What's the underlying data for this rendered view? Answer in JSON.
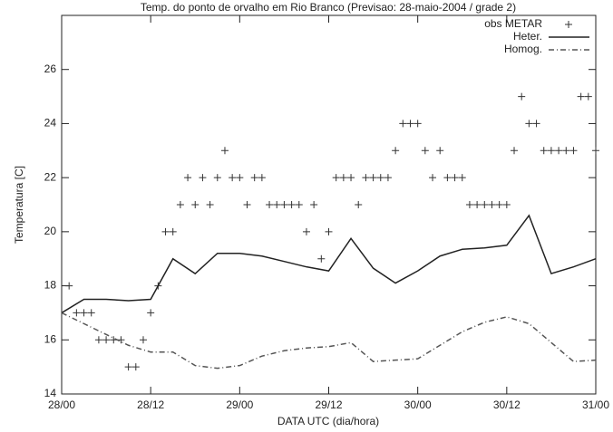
{
  "chart_data": {
    "type": "line",
    "title": "Temp. do ponto de orvalho em Rio Branco (Previsao: 28-maio-2004 / grade 2)",
    "xlabel": "DATA UTC (dia/hora)",
    "ylabel": "Temperatura [C]",
    "xlim": [
      0,
      72
    ],
    "ylim": [
      14,
      28
    ],
    "xticks": [
      {
        "value": 0,
        "label": "28/00"
      },
      {
        "value": 12,
        "label": "28/12"
      },
      {
        "value": 24,
        "label": "29/00"
      },
      {
        "value": 36,
        "label": "29/12"
      },
      {
        "value": 48,
        "label": "30/00"
      },
      {
        "value": 60,
        "label": "30/12"
      },
      {
        "value": 72,
        "label": "31/00"
      }
    ],
    "yticks": [
      14,
      16,
      18,
      20,
      22,
      24,
      26
    ],
    "legend": "top-right",
    "series": [
      {
        "name": "obs METAR",
        "style": "plus",
        "color": "#333333",
        "x": [
          1,
          2,
          3,
          4,
          5,
          6,
          7,
          8,
          9,
          10,
          11,
          12,
          13,
          14,
          15,
          16,
          17,
          18,
          19,
          20,
          21,
          22,
          23,
          24,
          25,
          26,
          27,
          28,
          29,
          30,
          31,
          32,
          33,
          34,
          35,
          36,
          37,
          38,
          39,
          40,
          41,
          42,
          43,
          44,
          45,
          46,
          47,
          48,
          49,
          50,
          51,
          52,
          53,
          54,
          55,
          56,
          57,
          58,
          59,
          60,
          61,
          62,
          63,
          64,
          65,
          66,
          67,
          68,
          69,
          70,
          71,
          72
        ],
        "values": [
          18,
          17,
          17,
          17,
          16,
          16,
          16,
          16,
          15,
          15,
          16,
          17,
          18,
          20,
          20,
          21,
          22,
          21,
          22,
          21,
          22,
          23,
          22,
          22,
          21,
          22,
          22,
          21,
          21,
          21,
          21,
          21,
          20,
          21,
          19,
          20,
          22,
          22,
          22,
          21,
          22,
          22,
          22,
          22,
          23,
          24,
          24,
          24,
          23,
          22,
          23,
          22,
          22,
          22,
          21,
          21,
          21,
          21,
          21,
          21,
          23,
          25,
          24,
          24,
          23,
          23,
          23,
          23,
          23,
          25,
          25,
          23
        ]
      },
      {
        "name": "Heter.",
        "style": "solid",
        "color": "#222222",
        "x": [
          0,
          3,
          6,
          9,
          12,
          15,
          18,
          21,
          24,
          27,
          30,
          33,
          36,
          39,
          42,
          45,
          48,
          51,
          54,
          57,
          60,
          63,
          66,
          69,
          72
        ],
        "values": [
          17,
          17.5,
          17.5,
          17.45,
          17.5,
          19,
          18.45,
          19.2,
          19.2,
          19.1,
          18.9,
          18.7,
          18.55,
          19.75,
          18.65,
          18.1,
          18.55,
          19.1,
          19.35,
          19.4,
          19.5,
          20.6,
          18.45,
          18.7,
          19.0
        ]
      },
      {
        "name": "Homog.",
        "style": "dash-dot",
        "color": "#555555",
        "x": [
          0,
          3,
          6,
          9,
          12,
          15,
          18,
          21,
          24,
          27,
          30,
          33,
          36,
          39,
          42,
          45,
          48,
          51,
          54,
          57,
          60,
          63,
          66,
          69,
          72
        ],
        "values": [
          17,
          16.6,
          16.2,
          15.8,
          15.55,
          15.55,
          15.05,
          14.95,
          15.05,
          15.4,
          15.6,
          15.7,
          15.75,
          15.9,
          15.2,
          15.25,
          15.3,
          15.8,
          16.3,
          16.65,
          16.85,
          16.6,
          15.9,
          15.2,
          15.25
        ]
      }
    ]
  }
}
